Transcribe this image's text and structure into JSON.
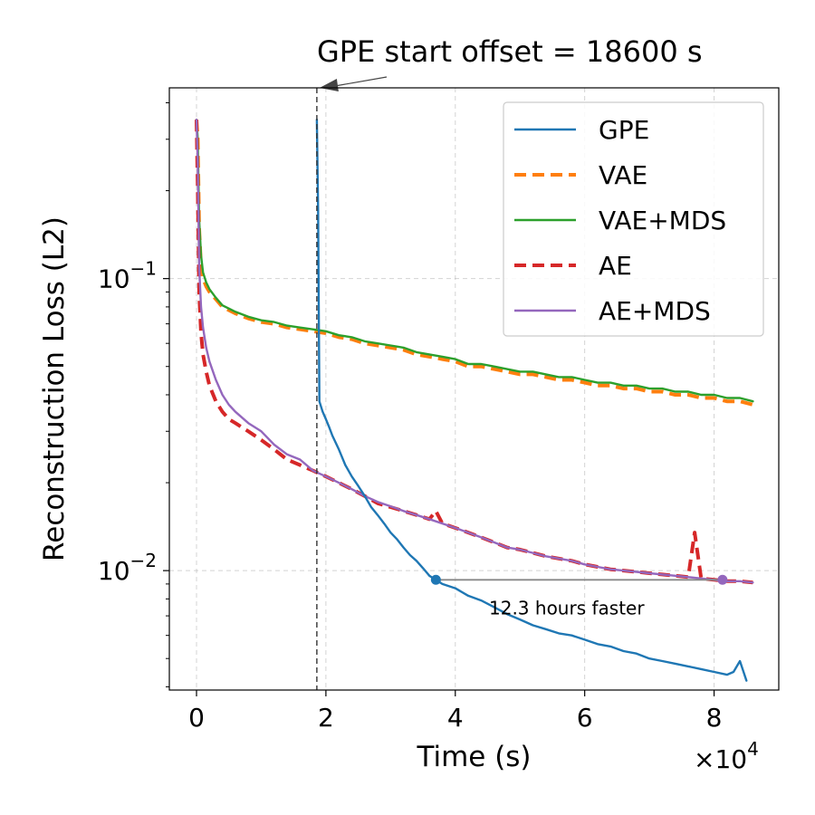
{
  "chart_data": {
    "type": "line",
    "title": "",
    "xlabel": "Time (s)",
    "ylabel": "Reconstruction Loss (L2)",
    "xscale": "linear",
    "yscale": "log",
    "x_multiplier": "×10",
    "x_multiplier_exp": "4",
    "xlim": [
      -4200,
      90000
    ],
    "ylim": [
      0.0039,
      0.45
    ],
    "xticks": [
      0,
      20000,
      40000,
      60000,
      80000
    ],
    "xtick_labels": [
      "0",
      "2",
      "4",
      "6",
      "8"
    ],
    "yticks": [
      0.1,
      0.01
    ],
    "ytick_base": "10",
    "ytick_exps": [
      "−1",
      "−2"
    ],
    "grid": true,
    "legend_position": "top-right",
    "series": [
      {
        "name": "GPE",
        "color": "#1f77b4",
        "style": "solid",
        "x": [
          18600,
          18800,
          19000,
          19500,
          20000,
          20500,
          21000,
          22000,
          23000,
          24000,
          25000,
          26000,
          27000,
          28000,
          29000,
          30000,
          31000,
          32000,
          33000,
          34000,
          35000,
          36000,
          37000,
          38000,
          40000,
          42000,
          44000,
          46000,
          48000,
          50000,
          52000,
          54000,
          56000,
          58000,
          60000,
          62000,
          64000,
          66000,
          68000,
          70000,
          72000,
          74000,
          76000,
          78000,
          80000,
          82000,
          83000,
          84000,
          85000
        ],
        "y": [
          0.35,
          0.17,
          0.038,
          0.035,
          0.033,
          0.031,
          0.029,
          0.026,
          0.023,
          0.021,
          0.0195,
          0.018,
          0.0165,
          0.0155,
          0.0145,
          0.0135,
          0.0128,
          0.012,
          0.0113,
          0.0108,
          0.0102,
          0.0096,
          0.0093,
          0.009,
          0.0087,
          0.0082,
          0.0079,
          0.0075,
          0.0071,
          0.0068,
          0.0065,
          0.0063,
          0.0061,
          0.006,
          0.0058,
          0.0056,
          0.0055,
          0.0053,
          0.0052,
          0.005,
          0.0049,
          0.0048,
          0.0047,
          0.0046,
          0.0045,
          0.0044,
          0.0045,
          0.0049,
          0.0042
        ]
      },
      {
        "name": "VAE",
        "color": "#ff7f0e",
        "style": "dashed",
        "x": [
          0,
          200,
          400,
          700,
          1000,
          1500,
          2000,
          3000,
          4000,
          6000,
          8000,
          10000,
          12000,
          14000,
          16000,
          18000,
          20000,
          22000,
          24000,
          26000,
          28000,
          30000,
          32000,
          34000,
          36000,
          38000,
          40000,
          42000,
          44000,
          46000,
          48000,
          50000,
          52000,
          54000,
          56000,
          58000,
          60000,
          62000,
          64000,
          66000,
          68000,
          70000,
          72000,
          74000,
          76000,
          78000,
          80000,
          82000,
          84000,
          86000
        ],
        "y": [
          0.35,
          0.3,
          0.15,
          0.11,
          0.1,
          0.094,
          0.09,
          0.085,
          0.08,
          0.076,
          0.073,
          0.071,
          0.07,
          0.068,
          0.067,
          0.066,
          0.065,
          0.063,
          0.062,
          0.06,
          0.059,
          0.058,
          0.057,
          0.055,
          0.054,
          0.053,
          0.052,
          0.05,
          0.05,
          0.049,
          0.048,
          0.047,
          0.047,
          0.046,
          0.045,
          0.045,
          0.044,
          0.043,
          0.043,
          0.042,
          0.042,
          0.041,
          0.041,
          0.04,
          0.04,
          0.039,
          0.039,
          0.038,
          0.038,
          0.037
        ]
      },
      {
        "name": "VAE+MDS",
        "color": "#2ca02c",
        "style": "solid",
        "x": [
          0,
          200,
          400,
          700,
          1000,
          1500,
          2000,
          3000,
          4000,
          6000,
          8000,
          10000,
          12000,
          14000,
          16000,
          18000,
          20000,
          22000,
          24000,
          26000,
          28000,
          30000,
          32000,
          34000,
          36000,
          38000,
          40000,
          42000,
          44000,
          46000,
          48000,
          50000,
          52000,
          54000,
          56000,
          58000,
          60000,
          62000,
          64000,
          66000,
          68000,
          70000,
          72000,
          74000,
          76000,
          78000,
          80000,
          82000,
          84000,
          86000
        ],
        "y": [
          0.35,
          0.3,
          0.16,
          0.12,
          0.105,
          0.097,
          0.092,
          0.086,
          0.081,
          0.077,
          0.074,
          0.072,
          0.071,
          0.069,
          0.068,
          0.067,
          0.066,
          0.064,
          0.063,
          0.061,
          0.06,
          0.059,
          0.058,
          0.056,
          0.055,
          0.054,
          0.053,
          0.051,
          0.051,
          0.05,
          0.049,
          0.048,
          0.048,
          0.047,
          0.046,
          0.046,
          0.045,
          0.044,
          0.044,
          0.043,
          0.043,
          0.042,
          0.042,
          0.041,
          0.041,
          0.04,
          0.04,
          0.039,
          0.039,
          0.038
        ]
      },
      {
        "name": "AE",
        "color": "#d62728",
        "style": "dashed",
        "x": [
          0,
          200,
          400,
          700,
          1000,
          1500,
          2000,
          3000,
          4000,
          5000,
          6000,
          8000,
          10000,
          12000,
          14000,
          16000,
          18000,
          20000,
          22000,
          24000,
          26000,
          28000,
          30000,
          32000,
          34000,
          36000,
          37000,
          38000,
          40000,
          42000,
          44000,
          46000,
          48000,
          50000,
          52000,
          54000,
          56000,
          58000,
          60000,
          62000,
          64000,
          66000,
          68000,
          70000,
          72000,
          74000,
          76000,
          77000,
          78000,
          80000,
          82000,
          84000,
          86000
        ],
        "y": [
          0.35,
          0.2,
          0.09,
          0.065,
          0.055,
          0.048,
          0.043,
          0.038,
          0.035,
          0.033,
          0.032,
          0.03,
          0.028,
          0.026,
          0.024,
          0.023,
          0.022,
          0.021,
          0.02,
          0.019,
          0.018,
          0.017,
          0.0165,
          0.016,
          0.0155,
          0.015,
          0.016,
          0.0145,
          0.014,
          0.0135,
          0.013,
          0.0125,
          0.012,
          0.0118,
          0.0115,
          0.0112,
          0.011,
          0.0108,
          0.0105,
          0.0103,
          0.0101,
          0.01,
          0.0099,
          0.0098,
          0.0097,
          0.0096,
          0.0095,
          0.0135,
          0.0094,
          0.0093,
          0.0092,
          0.0092,
          0.0091
        ]
      },
      {
        "name": "AE+MDS",
        "color": "#9467bd",
        "style": "solid",
        "x": [
          0,
          200,
          400,
          700,
          1000,
          1500,
          2000,
          3000,
          4000,
          5000,
          6000,
          8000,
          10000,
          12000,
          14000,
          16000,
          18000,
          20000,
          22000,
          24000,
          26000,
          28000,
          30000,
          32000,
          34000,
          36000,
          38000,
          40000,
          42000,
          44000,
          46000,
          48000,
          50000,
          52000,
          54000,
          56000,
          58000,
          60000,
          62000,
          64000,
          66000,
          68000,
          70000,
          72000,
          74000,
          76000,
          78000,
          80000,
          82000,
          84000,
          86000
        ],
        "y": [
          0.35,
          0.25,
          0.11,
          0.08,
          0.068,
          0.058,
          0.052,
          0.045,
          0.04,
          0.037,
          0.035,
          0.032,
          0.03,
          0.027,
          0.025,
          0.024,
          0.022,
          0.021,
          0.02,
          0.019,
          0.018,
          0.0172,
          0.0166,
          0.016,
          0.0155,
          0.015,
          0.0145,
          0.014,
          0.0135,
          0.013,
          0.0125,
          0.012,
          0.0118,
          0.0115,
          0.0112,
          0.011,
          0.0108,
          0.0105,
          0.0103,
          0.0101,
          0.01,
          0.0099,
          0.0098,
          0.0097,
          0.0096,
          0.0095,
          0.0094,
          0.0093,
          0.0092,
          0.0092,
          0.0091
        ]
      }
    ],
    "annotations": {
      "offset_text": "GPE start offset = 18600 s",
      "offset_x": 18600,
      "faster_text": "12.3 hours faster",
      "faster_x_start": 37000,
      "faster_x_end": 81300,
      "faster_y": 0.0093
    }
  }
}
